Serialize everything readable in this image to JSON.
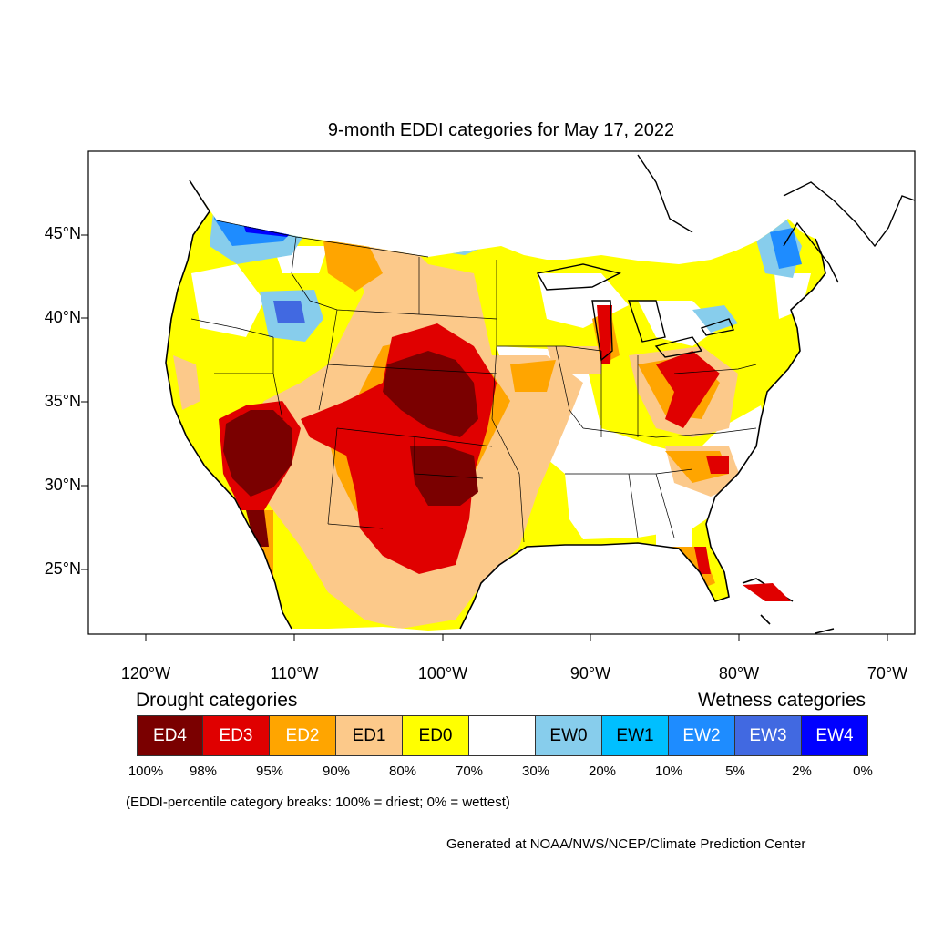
{
  "title": "9-month EDDI categories for May 17, 2022",
  "lat_labels": [
    "45°N",
    "40°N",
    "35°N",
    "30°N",
    "25°N"
  ],
  "lon_labels": [
    "120°W",
    "110°W",
    "100°W",
    "90°W",
    "80°W",
    "70°W"
  ],
  "legend": {
    "drought_heading": "Drought categories",
    "wetness_heading": "Wetness categories",
    "categories": [
      {
        "label": "ED4",
        "color": "#7a0000",
        "text_color": "#ffffff"
      },
      {
        "label": "ED3",
        "color": "#e00000",
        "text_color": "#ffffff"
      },
      {
        "label": "ED2",
        "color": "#ffa500",
        "text_color": "#ffffff"
      },
      {
        "label": "ED1",
        "color": "#fcc98a",
        "text_color": "#000000"
      },
      {
        "label": "ED0",
        "color": "#ffff00",
        "text_color": "#000000"
      },
      {
        "label": "",
        "color": "#ffffff",
        "text_color": "#000000"
      },
      {
        "label": "EW0",
        "color": "#87cdec",
        "text_color": "#000000"
      },
      {
        "label": "EW1",
        "color": "#00bfff",
        "text_color": "#000000"
      },
      {
        "label": "EW2",
        "color": "#1e8cff",
        "text_color": "#ffffff"
      },
      {
        "label": "EW3",
        "color": "#4169e1",
        "text_color": "#ffffff"
      },
      {
        "label": "EW4",
        "color": "#0000ff",
        "text_color": "#ffffff"
      }
    ],
    "percentiles": [
      "100%",
      "98%",
      "95%",
      "90%",
      "80%",
      "70%",
      "30%",
      "20%",
      "10%",
      "5%",
      "2%",
      "0%"
    ]
  },
  "note": "(EDDI-percentile category breaks: 100% = driest; 0% = wettest)",
  "credit": "Generated at NOAA/NWS/NCEP/Climate Prediction Center"
}
